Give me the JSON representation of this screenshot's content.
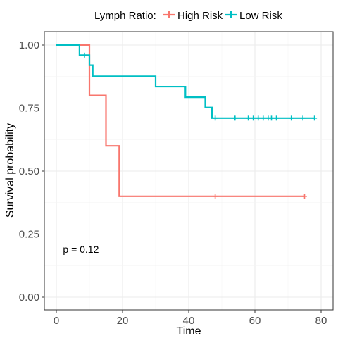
{
  "chart_data": {
    "type": "line",
    "subtype": "kaplan-meier-step",
    "xlabel": "Time",
    "ylabel": "Survival probability",
    "xlim": [
      0,
      80
    ],
    "ylim": [
      0,
      1
    ],
    "x_ticks": [
      0,
      20,
      40,
      60,
      80
    ],
    "y_ticks": [
      0.0,
      0.25,
      0.5,
      0.75,
      1.0
    ],
    "x_tick_labels": [
      "0",
      "20",
      "40",
      "60",
      "80"
    ],
    "y_tick_labels": [
      "0.00",
      "0.25",
      "0.50",
      "0.75",
      "1.00"
    ],
    "grid": true,
    "legend": {
      "title": "Lymph Ratio:",
      "placement": "top",
      "entries": [
        "High Risk",
        "Low Risk"
      ]
    },
    "annotation": "p = 0.12",
    "annotation_pos": [
      2,
      0.19
    ],
    "series": [
      {
        "name": "High Risk",
        "color": "#F8766D",
        "steps": [
          [
            0,
            1.0
          ],
          [
            10,
            0.8
          ],
          [
            15,
            0.6
          ],
          [
            19,
            0.4
          ],
          [
            75,
            0.4
          ]
        ],
        "censored": [
          [
            48,
            0.4
          ],
          [
            75,
            0.4
          ]
        ]
      },
      {
        "name": "Low Risk",
        "color": "#00BFC4",
        "steps": [
          [
            0,
            1.0
          ],
          [
            7,
            0.96
          ],
          [
            10,
            0.92
          ],
          [
            11,
            0.876
          ],
          [
            30,
            0.835
          ],
          [
            39,
            0.793
          ],
          [
            45,
            0.752
          ],
          [
            47,
            0.71
          ],
          [
            78,
            0.71
          ]
        ],
        "censored": [
          [
            8.5,
            0.96
          ],
          [
            48,
            0.71
          ],
          [
            54,
            0.71
          ],
          [
            58,
            0.71
          ],
          [
            59.5,
            0.71
          ],
          [
            61,
            0.71
          ],
          [
            62.5,
            0.71
          ],
          [
            64,
            0.71
          ],
          [
            65,
            0.71
          ],
          [
            66.5,
            0.71
          ],
          [
            71,
            0.71
          ],
          [
            74.5,
            0.71
          ],
          [
            78,
            0.71
          ]
        ]
      }
    ]
  }
}
